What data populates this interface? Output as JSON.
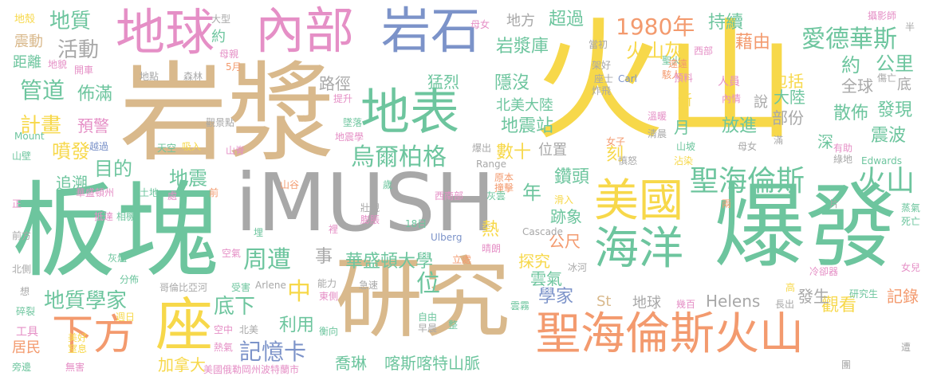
{
  "palette": {
    "yellow": "#F7D84A",
    "green": "#6DC59E",
    "tan": "#D9B98C",
    "pink": "#E58FC6",
    "blue": "#7C93C9",
    "orange": "#F39A6E",
    "gray": "#A8A8A8",
    "lime": "#B5D27C"
  },
  "words": [
    {
      "id": "huoshan",
      "text": "火山",
      "color": "yellow"
    },
    {
      "id": "yanjiang",
      "text": "岩漿",
      "color": "tan"
    },
    {
      "id": "bankuai",
      "text": "板塊",
      "color": "green"
    },
    {
      "id": "imush",
      "text": "iMUSH",
      "color": "gray"
    },
    {
      "id": "baofa",
      "text": "爆發",
      "color": "green"
    },
    {
      "id": "yanjiu",
      "text": "研究",
      "color": "tan"
    },
    {
      "id": "diqiu_l",
      "text": "地球",
      "color": "pink"
    },
    {
      "id": "neibu",
      "text": "內部",
      "color": "pink"
    },
    {
      "id": "yanshi",
      "text": "岩石",
      "color": "blue"
    },
    {
      "id": "dibiao",
      "text": "地表",
      "color": "green"
    },
    {
      "id": "meiguo",
      "text": "美國",
      "color": "yellow"
    },
    {
      "id": "haiyang",
      "text": "海洋",
      "color": "green"
    },
    {
      "id": "shengshan",
      "text": "聖海倫斯火山",
      "color": "orange"
    },
    {
      "id": "xiafang",
      "text": "下方",
      "color": "orange"
    },
    {
      "id": "zuo",
      "text": "座",
      "color": "yellow"
    },
    {
      "id": "wuergeg",
      "text": "烏爾柏格",
      "color": "green"
    },
    {
      "id": "shenghai",
      "text": "聖海倫斯",
      "color": "green"
    },
    {
      "id": "huoshan_s",
      "text": "火山",
      "color": "green"
    },
    {
      "id": "aide",
      "text": "愛德華斯",
      "color": "green"
    },
    {
      "id": "y1980",
      "text": "1980年",
      "color": "orange"
    },
    {
      "id": "dizhi",
      "text": "地質",
      "color": "green"
    },
    {
      "id": "huodong",
      "text": "活動",
      "color": "gray"
    },
    {
      "id": "guandao",
      "text": "管道",
      "color": "green"
    },
    {
      "id": "buman",
      "text": "佈滿",
      "color": "green"
    },
    {
      "id": "jihua",
      "text": "計畫",
      "color": "yellow"
    },
    {
      "id": "yujing",
      "text": "預警",
      "color": "pink"
    },
    {
      "id": "penfa",
      "text": "噴發",
      "color": "yellow"
    },
    {
      "id": "mudi",
      "text": "目的",
      "color": "green"
    },
    {
      "id": "zhuisu",
      "text": "追溯",
      "color": "green"
    },
    {
      "id": "dizhen",
      "text": "地震",
      "color": "green"
    },
    {
      "id": "dizhixuejia",
      "text": "地質學家",
      "color": "green"
    },
    {
      "id": "zhouzao",
      "text": "周遭",
      "color": "green"
    },
    {
      "id": "dixia",
      "text": "底下",
      "color": "green"
    },
    {
      "id": "jiyika",
      "text": "記憶卡",
      "color": "blue"
    },
    {
      "id": "jianada",
      "text": "加拿大",
      "color": "yellow"
    },
    {
      "id": "qiaolin",
      "text": "喬琳",
      "color": "green"
    },
    {
      "id": "kasi",
      "text": "喀斯喀特山脈",
      "color": "green"
    },
    {
      "id": "huasheng",
      "text": "華盛頓大學",
      "color": "green"
    },
    {
      "id": "tanjiu",
      "text": "探究",
      "color": "yellow"
    },
    {
      "id": "gongchi",
      "text": "公尺",
      "color": "orange"
    },
    {
      "id": "yunqi",
      "text": "雲氣",
      "color": "green"
    },
    {
      "id": "xuejia",
      "text": "學家",
      "color": "blue"
    },
    {
      "id": "helens",
      "text": "Helens",
      "color": "gray"
    },
    {
      "id": "guankan",
      "text": "觀看",
      "color": "yellow"
    },
    {
      "id": "jilu",
      "text": "記錄",
      "color": "orange"
    },
    {
      "id": "fasheng",
      "text": "發生",
      "color": "gray"
    },
    {
      "id": "diqiu_s",
      "text": "地球",
      "color": "gray"
    },
    {
      "id": "chaoguo",
      "text": "超過",
      "color": "green"
    },
    {
      "id": "chixu",
      "text": "持續",
      "color": "green"
    },
    {
      "id": "jieyou",
      "text": "藉由",
      "color": "orange"
    },
    {
      "id": "huoshanhui",
      "text": "火山灰",
      "color": "yellow"
    },
    {
      "id": "yue",
      "text": "約",
      "color": "green"
    },
    {
      "id": "gongli",
      "text": "公里",
      "color": "green"
    },
    {
      "id": "quanqiu",
      "text": "全球",
      "color": "gray"
    },
    {
      "id": "baokuo",
      "text": "包括",
      "color": "yellow"
    },
    {
      "id": "dalu",
      "text": "大陸",
      "color": "green"
    },
    {
      "id": "fangjin",
      "text": "放進",
      "color": "green"
    },
    {
      "id": "bufen",
      "text": "部份",
      "color": "gray"
    },
    {
      "id": "sanbu",
      "text": "散佈",
      "color": "green"
    },
    {
      "id": "faxian",
      "text": "發現",
      "color": "green"
    },
    {
      "id": "zhenbo",
      "text": "震波",
      "color": "green"
    },
    {
      "id": "shen",
      "text": "深",
      "color": "green"
    },
    {
      "id": "di",
      "text": "底",
      "color": "gray"
    },
    {
      "id": "yanjiangku",
      "text": "岩漿庫",
      "color": "green"
    },
    {
      "id": "yinmo",
      "text": "隱沒",
      "color": "green"
    },
    {
      "id": "dizhenzhan",
      "text": "地震站",
      "color": "green"
    },
    {
      "id": "beimei",
      "text": "北美大陸",
      "color": "green"
    },
    {
      "id": "menglie",
      "text": "猛烈",
      "color": "green"
    },
    {
      "id": "lujing",
      "text": "路徑",
      "color": "gray"
    },
    {
      "id": "shushi",
      "text": "數十",
      "color": "yellow"
    },
    {
      "id": "ke",
      "text": "刻",
      "color": "yellow"
    },
    {
      "id": "zuantou",
      "text": "鑽頭",
      "color": "green"
    },
    {
      "id": "nian",
      "text": "年",
      "color": "green"
    },
    {
      "id": "jixiang",
      "text": "跡象",
      "color": "green"
    },
    {
      "id": "re",
      "text": "熱",
      "color": "yellow"
    },
    {
      "id": "zhong",
      "text": "中",
      "color": "yellow"
    },
    {
      "id": "wei",
      "text": "位",
      "color": "green"
    },
    {
      "id": "shi",
      "text": "事",
      "color": "gray"
    },
    {
      "id": "liyong",
      "text": "利用",
      "color": "green"
    },
    {
      "id": "st",
      "text": "St",
      "color": "tan"
    },
    {
      "id": "difang",
      "text": "地方",
      "color": "gray"
    },
    {
      "id": "yue_month",
      "text": "月",
      "color": "green"
    },
    {
      "id": "xin",
      "text": "新",
      "color": "yellow"
    },
    {
      "id": "shuo",
      "text": "說",
      "color": "gray"
    },
    {
      "id": "weizhi",
      "text": "位置",
      "color": "gray"
    },
    {
      "id": "dike",
      "text": "地殼",
      "color": "yellow"
    },
    {
      "id": "zhendong",
      "text": "震動",
      "color": "tan"
    },
    {
      "id": "juli",
      "text": "距離",
      "color": "green"
    },
    {
      "id": "dimao",
      "text": "地貌",
      "color": "yellow"
    },
    {
      "id": "dadian",
      "text": "大型",
      "color": "gray"
    },
    {
      "id": "yue_s",
      "text": "約",
      "color": "green"
    },
    {
      "id": "muqin",
      "text": "母親",
      "color": "pink"
    },
    {
      "id": "m5",
      "text": "5月",
      "color": "orange"
    },
    {
      "id": "shanbi",
      "text": "山壁",
      "color": "green"
    },
    {
      "id": "kaiche",
      "text": "開車",
      "color": "pink"
    },
    {
      "id": "shan",
      "text": "山",
      "color": "orange"
    },
    {
      "id": "mount",
      "text": "Mount",
      "color": "green"
    },
    {
      "id": "tiankong",
      "text": "天空",
      "color": "green"
    },
    {
      "id": "xiru",
      "text": "吸入",
      "color": "yellow"
    },
    {
      "id": "shanji",
      "text": "山脊",
      "color": "pink"
    },
    {
      "id": "yuedu",
      "text": "越過",
      "color": "blue"
    },
    {
      "id": "senlin",
      "text": "森林",
      "color": "gray"
    },
    {
      "id": "didian",
      "text": "地點",
      "color": "gray"
    },
    {
      "id": "guanjingdian",
      "text": "觀景點",
      "color": "gray"
    },
    {
      "id": "tisheng",
      "text": "提升",
      "color": "pink"
    },
    {
      "id": "zhuiluo",
      "text": "墜落",
      "color": "green"
    },
    {
      "id": "dizhixian",
      "text": "地震學",
      "color": "pink"
    },
    {
      "id": "baochu",
      "text": "爆出",
      "color": "gray"
    },
    {
      "id": "range",
      "text": "Range",
      "color": "gray"
    },
    {
      "id": "zhuangji",
      "text": "撞擊",
      "color": "orange"
    },
    {
      "id": "yuanben",
      "text": "原本",
      "color": "orange"
    },
    {
      "id": "huachengzhou",
      "text": "華盛頓州",
      "color": "pink"
    },
    {
      "id": "tudi",
      "text": "土地",
      "color": "green"
    },
    {
      "id": "chu",
      "text": "處",
      "color": "pink"
    },
    {
      "id": "qian",
      "text": "前",
      "color": "orange"
    },
    {
      "id": "zheng",
      "text": "正",
      "color": "pink"
    },
    {
      "id": "didai",
      "text": "抵達",
      "color": "pink"
    },
    {
      "id": "xiangxian",
      "text": "相機",
      "color": "green"
    },
    {
      "id": "qianfang",
      "text": "前方",
      "color": "gray"
    },
    {
      "id": "huijin",
      "text": "灰燼",
      "color": "green"
    },
    {
      "id": "beice",
      "text": "北側",
      "color": "gray"
    },
    {
      "id": "xiang",
      "text": "想",
      "color": "gray"
    },
    {
      "id": "suiye",
      "text": "碎裂",
      "color": "green"
    },
    {
      "id": "gongju",
      "text": "工具",
      "color": "pink"
    },
    {
      "id": "jumin",
      "text": "居民",
      "color": "orange"
    },
    {
      "id": "pangbian",
      "text": "旁邊",
      "color": "green"
    },
    {
      "id": "wuhai",
      "text": "無害",
      "color": "pink"
    },
    {
      "id": "meihao",
      "text": "美好",
      "color": "yellow"
    },
    {
      "id": "zhixi",
      "text": "窒息",
      "color": "yellow"
    },
    {
      "id": "zhouri",
      "text": "週日",
      "color": "yellow"
    },
    {
      "id": "fenbu",
      "text": "分佈",
      "color": "green"
    },
    {
      "id": "gelunbiya",
      "text": "哥倫比亞河",
      "color": "gray"
    },
    {
      "id": "kongqi",
      "text": "空氣",
      "color": "pink"
    },
    {
      "id": "shouhai",
      "text": "受害",
      "color": "green"
    },
    {
      "id": "arlene",
      "text": "Arlene",
      "color": "gray"
    },
    {
      "id": "kongzhong",
      "text": "空中",
      "color": "pink"
    },
    {
      "id": "beimei_s",
      "text": "北美",
      "color": "gray"
    },
    {
      "id": "reqi",
      "text": "熱氣",
      "color": "pink"
    },
    {
      "id": "meiguoezhou",
      "text": "美國俄勒岡州波特蘭市",
      "color": "pink"
    },
    {
      "id": "nengli",
      "text": "能力",
      "color": "gray"
    },
    {
      "id": "jisu",
      "text": "急速",
      "color": "gray"
    },
    {
      "id": "dongmian",
      "text": "東側",
      "color": "pink"
    },
    {
      "id": "hengxiang",
      "text": "衡向",
      "color": "green"
    },
    {
      "id": "ziyou",
      "text": "自由",
      "color": "green"
    },
    {
      "id": "zaochen",
      "text": "早晨",
      "color": "gray"
    },
    {
      "id": "zheng2",
      "text": "整",
      "color": "green"
    },
    {
      "id": "zhuangguan",
      "text": "壯觀",
      "color": "gray"
    },
    {
      "id": "pengzhang",
      "text": "膨脹",
      "color": "pink"
    },
    {
      "id": "d18",
      "text": "18日",
      "color": "green"
    },
    {
      "id": "ulberg",
      "text": "Ulberg",
      "color": "blue"
    },
    {
      "id": "qinglang",
      "text": "晴朗",
      "color": "pink"
    },
    {
      "id": "lichu",
      "text": "立處",
      "color": "orange"
    },
    {
      "id": "binghe",
      "text": "冰河",
      "color": "gray"
    },
    {
      "id": "cascade",
      "text": "Cascade",
      "color": "gray"
    },
    {
      "id": "yunwu",
      "text": "雲霧",
      "color": "green"
    },
    {
      "id": "xinanbu",
      "text": "西南部",
      "color": "pink"
    },
    {
      "id": "huiwu",
      "text": "灰雲",
      "color": "green"
    },
    {
      "id": "huaru",
      "text": "滑入",
      "color": "yellow"
    },
    {
      "id": "sui",
      "text": "歲",
      "color": "green"
    },
    {
      "id": "shangu",
      "text": "山谷",
      "color": "orange"
    },
    {
      "id": "li",
      "text": "裡",
      "color": "pink"
    },
    {
      "id": "mai",
      "text": "埋",
      "color": "green"
    },
    {
      "id": "munv",
      "text": "母女",
      "color": "pink"
    },
    {
      "id": "nvzi",
      "text": "女子",
      "color": "orange"
    },
    {
      "id": "shenqi",
      "text": "慎怒",
      "color": "gray"
    },
    {
      "id": "zhafei",
      "text": "炸飛",
      "color": "gray"
    },
    {
      "id": "jiahao",
      "text": "架好",
      "color": "gray"
    },
    {
      "id": "dangwu",
      "text": "當初",
      "color": "gray"
    },
    {
      "id": "shenghuo",
      "text": "聖火",
      "color": "green"
    },
    {
      "id": "zuishi",
      "text": "座士",
      "color": "gray"
    },
    {
      "id": "carl",
      "text": "Carl",
      "color": "blue"
    },
    {
      "id": "jingren",
      "text": "駭人",
      "color": "orange"
    },
    {
      "id": "renyuan",
      "text": "人員",
      "color": "pink"
    },
    {
      "id": "neiqing",
      "text": "內情",
      "color": "pink"
    },
    {
      "id": "yuanyuan",
      "text": "遠遠",
      "color": "orange"
    },
    {
      "id": "xibu",
      "text": "西部",
      "color": "pink"
    },
    {
      "id": "sheyingshi",
      "text": "攝影師",
      "color": "pink"
    },
    {
      "id": "ban",
      "text": "半",
      "color": "gray"
    },
    {
      "id": "shangwang",
      "text": "傷亡",
      "color": "gray"
    },
    {
      "id": "yuliao",
      "text": "預料",
      "color": "pink"
    },
    {
      "id": "wennuan",
      "text": "溫暖",
      "color": "pink"
    },
    {
      "id": "qingchen",
      "text": "清晨",
      "color": "gray"
    },
    {
      "id": "shanpo",
      "text": "山坡",
      "color": "green"
    },
    {
      "id": "man",
      "text": "滿",
      "color": "gray"
    },
    {
      "id": "youzhu",
      "text": "有助",
      "color": "pink"
    },
    {
      "id": "lvdi",
      "text": "綠地",
      "color": "gray"
    },
    {
      "id": "muqin2",
      "text": "母女",
      "color": "gray"
    },
    {
      "id": "edwards",
      "text": "Edwards",
      "color": "green"
    },
    {
      "id": "zhanran",
      "text": "沾染",
      "color": "yellow"
    },
    {
      "id": "liang",
      "text": "兩",
      "color": "orange"
    },
    {
      "id": "pian",
      "text": "片",
      "color": "gray"
    },
    {
      "id": "zhengqi",
      "text": "蒸氣",
      "color": "green"
    },
    {
      "id": "siwang",
      "text": "死亡",
      "color": "green"
    },
    {
      "id": "nver",
      "text": "女兒",
      "color": "pink"
    },
    {
      "id": "lengqueqi",
      "text": "冷卻器",
      "color": "pink"
    },
    {
      "id": "gao",
      "text": "高",
      "color": "yellow"
    },
    {
      "id": "changchu",
      "text": "長出",
      "color": "gray"
    },
    {
      "id": "jibai",
      "text": "幾百",
      "color": "pink"
    },
    {
      "id": "yanjiusheng",
      "text": "研究生",
      "color": "green"
    },
    {
      "id": "zao",
      "text": "遭",
      "color": "gray"
    },
    {
      "id": "tuan",
      "text": "團",
      "color": "gray"
    }
  ]
}
